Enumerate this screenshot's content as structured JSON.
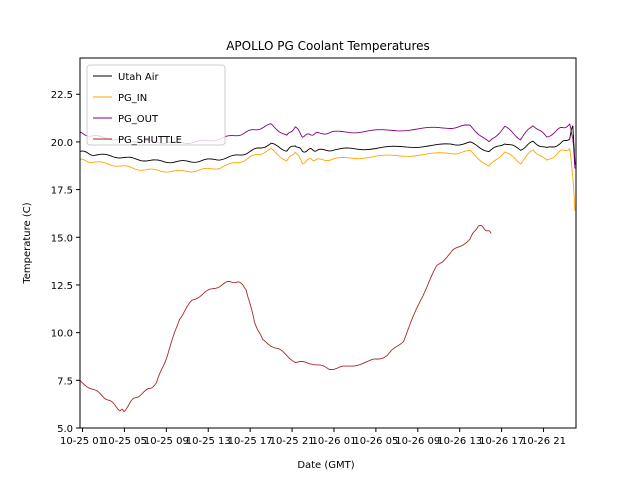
{
  "chart_data": {
    "type": "line",
    "title": "APOLLO PG Coolant Temperatures",
    "xlabel": "Date (GMT)",
    "ylabel": "Temperature (C)",
    "x_units": "hours since 10-25 00:00 GMT",
    "xlim": [
      0.76,
      48.1
    ],
    "ylim": [
      5.0,
      24.4
    ],
    "xticks": [
      1,
      5,
      9,
      13,
      17,
      21,
      25,
      29,
      33,
      37,
      41,
      45
    ],
    "xtick_labels": [
      "10-25 01",
      "10-25 05",
      "10-25 09",
      "10-25 13",
      "10-25 17",
      "10-25 21",
      "10-26 01",
      "10-26 05",
      "10-26 09",
      "10-26 13",
      "10-26 17",
      "10-26 21"
    ],
    "yticks": [
      5.0,
      7.5,
      10.0,
      12.5,
      15.0,
      17.5,
      20.0,
      22.5
    ],
    "ytick_labels": [
      "5.0",
      "7.5",
      "10.0",
      "12.5",
      "15.0",
      "17.5",
      "20.0",
      "22.5"
    ],
    "grid": false,
    "legend": "upper-left",
    "series": [
      {
        "name": "Utah Air",
        "color": "#000000",
        "x": [
          0.76,
          2,
          4,
          6,
          8,
          10,
          12,
          14,
          16,
          17.5,
          19,
          20.5,
          21.3,
          22,
          22.8,
          23.5,
          25,
          28,
          32,
          36,
          38,
          39.8,
          41.3,
          42.8,
          44.0,
          45.3,
          46.6,
          47.5,
          47.8,
          48.0
        ],
        "y": [
          19.5,
          19.35,
          19.25,
          19.1,
          19.0,
          18.95,
          19.0,
          19.1,
          19.3,
          19.6,
          19.9,
          19.55,
          19.85,
          19.5,
          19.6,
          19.55,
          19.6,
          19.65,
          19.75,
          19.85,
          19.95,
          19.5,
          19.95,
          19.6,
          20.0,
          19.65,
          19.9,
          20.2,
          20.9,
          18.8
        ]
      },
      {
        "name": "PG_IN",
        "color": "#FFA500",
        "x": [
          0.76,
          2,
          4,
          6,
          8,
          10,
          12,
          14,
          16,
          17.5,
          19,
          20.5,
          21.3,
          22,
          22.8,
          23.5,
          25,
          28,
          32,
          36,
          38,
          39.8,
          41.3,
          42.8,
          44.0,
          45.3,
          46.6,
          47.5,
          47.8,
          48.0
        ],
        "y": [
          19.05,
          18.95,
          18.8,
          18.6,
          18.5,
          18.45,
          18.5,
          18.65,
          18.95,
          19.3,
          19.6,
          19.0,
          19.5,
          18.9,
          19.1,
          19.05,
          19.1,
          19.2,
          19.3,
          19.4,
          19.5,
          18.7,
          19.5,
          18.9,
          19.6,
          19.0,
          19.5,
          19.65,
          18.2,
          16.4
        ]
      },
      {
        "name": "PG_OUT",
        "color": "#800080",
        "x": [
          0.76,
          2,
          4,
          6,
          8,
          10,
          12,
          14,
          16,
          17.5,
          19,
          20.5,
          21.3,
          22,
          22.8,
          23.5,
          25,
          28,
          32,
          36,
          38,
          39.8,
          41.3,
          42.8,
          44.0,
          45.3,
          46.6,
          47.5,
          47.8,
          48.0
        ],
        "y": [
          20.45,
          20.3,
          20.15,
          20.05,
          20.0,
          19.95,
          20.0,
          20.15,
          20.4,
          20.65,
          20.9,
          20.3,
          20.8,
          20.3,
          20.4,
          20.45,
          20.5,
          20.55,
          20.65,
          20.75,
          20.85,
          19.95,
          20.8,
          20.15,
          20.9,
          20.25,
          20.7,
          20.9,
          20.2,
          18.6
        ]
      },
      {
        "name": "PG_SHUTTLE",
        "color": "#A52A2A",
        "x": [
          0.76,
          2.35,
          3.54,
          4.57,
          4.96,
          5.91,
          7.1,
          8.05,
          9.08,
          10.27,
          11.46,
          13.04,
          14.63,
          15.82,
          16.61,
          17.4,
          18.19,
          19.77,
          21.36,
          22.94,
          24.52,
          26.1,
          28.48,
          30.07,
          31.65,
          33.24,
          34.82,
          36.4,
          37.99,
          38.78,
          39.4,
          40.0
        ],
        "y": [
          7.45,
          6.9,
          6.45,
          5.95,
          5.9,
          6.55,
          6.95,
          7.35,
          8.8,
          10.75,
          11.7,
          12.2,
          12.6,
          12.7,
          12.3,
          10.6,
          9.6,
          9.1,
          8.45,
          8.4,
          8.1,
          8.2,
          8.5,
          8.8,
          9.6,
          11.7,
          13.5,
          14.3,
          14.9,
          15.65,
          15.45,
          15.2
        ]
      }
    ]
  }
}
